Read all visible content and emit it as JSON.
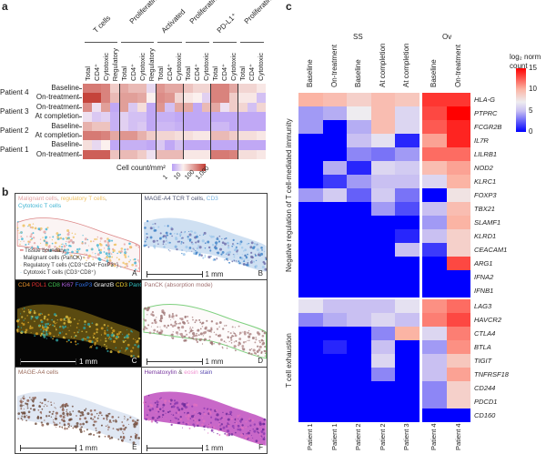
{
  "panel_a": {
    "letter": "a",
    "group_labels": [
      "T cells",
      "Proliferating",
      "Activated",
      "Proliferating activated",
      "PD-L1⁺",
      "Proliferating PD-L1⁺"
    ],
    "group_sizes": [
      4,
      4,
      3,
      3,
      3,
      3
    ],
    "column_labels": [
      "Total",
      "CD4⁺",
      "Cytotoxic",
      "Regulatory",
      "Total",
      "CD4⁺",
      "Cytotoxic",
      "Regulatory",
      "Total",
      "CD4⁺",
      "Cytotoxic",
      "Total",
      "CD4⁺",
      "Cytotoxic",
      "Total",
      "CD4⁺",
      "Cytotoxic",
      "Total",
      "CD4⁺",
      "Cytotoxic"
    ],
    "patients": [
      "Patient 4",
      "Patient 3",
      "Patient 2",
      "Patient 1"
    ],
    "row_labels": [
      "Baseline",
      "On-treatment",
      "On-treatment",
      "At completion",
      "Baseline",
      "At completion",
      "Baseline",
      "On-treatment"
    ],
    "values_log10_cell_count": [
      [
        2.3,
        2.3,
        2.2,
        1.4,
        1.8,
        1.6,
        1.6,
        0.7,
        2.0,
        1.8,
        1.8,
        1.5,
        1.3,
        1.3,
        2.2,
        2.2,
        1.8,
        1.3,
        1.3,
        1.1
      ],
      [
        2.9,
        2.9,
        2.2,
        1.6,
        1.9,
        1.9,
        1.8,
        1.0,
        2.1,
        2.0,
        1.3,
        1.1,
        1.0,
        0.6,
        2.2,
        2.2,
        1.4,
        1.1,
        1.1,
        0.4
      ],
      [
        2.1,
        0.8,
        1.9,
        0.1,
        1.9,
        0.5,
        1.2,
        0.1,
        2.0,
        0.4,
        1.8,
        1.8,
        0.1,
        1.6,
        1.8,
        0.8,
        1.4,
        1.3,
        0.4,
        1.3
      ],
      [
        0.8,
        0.5,
        0.6,
        0.2,
        0.6,
        0.4,
        0.4,
        0.1,
        0.2,
        0.2,
        0.1,
        0.1,
        0.1,
        0.1,
        0.1,
        0.1,
        0.1,
        0.1,
        0.1,
        0.1
      ],
      [
        1.7,
        1.5,
        1.5,
        0.2,
        0.6,
        0.4,
        0.5,
        0.1,
        0.3,
        0.3,
        0.2,
        0.1,
        0.1,
        0.1,
        0.3,
        0.3,
        0.1,
        0.1,
        0.1,
        0.1
      ],
      [
        2.3,
        2.3,
        2.2,
        1.8,
        2.0,
        2.0,
        1.7,
        1.4,
        1.3,
        1.3,
        1.2,
        1.2,
        1.1,
        1.1,
        1.6,
        1.6,
        1.4,
        1.2,
        1.2,
        1.1
      ],
      [
        1.2,
        0.7,
        1.0,
        0.1,
        0.2,
        0.2,
        0.2,
        0.1,
        0.5,
        0.1,
        0.4,
        0.1,
        0.1,
        0.1,
        0.1,
        0.1,
        0.1,
        0.1,
        0.1,
        0.1
      ],
      [
        2.6,
        2.6,
        2.6,
        1.5,
        1.6,
        1.6,
        1.4,
        0.8,
        1.6,
        1.6,
        1.6,
        1.1,
        1.1,
        1.1,
        2.3,
        2.3,
        2.2,
        1.2,
        1.2,
        1.1
      ]
    ],
    "colorbar": {
      "title": "Cell count/mm²",
      "ticks": [
        "1",
        "10",
        "100",
        "1,000"
      ],
      "low_color": "#b9a0f6",
      "mid_color": "#fbf0ee",
      "high_color": "#c23b32"
    }
  },
  "panel_b": {
    "letter": "b",
    "panels": [
      {
        "letter": "A",
        "title": [
          {
            "text": "Malignant cells",
            "color": "#e3a3a3"
          },
          {
            "text": ", ",
            "color": "#888"
          },
          {
            "text": "regulatory T cells",
            "color": "#efc264"
          },
          {
            "text": ",",
            "color": "#888"
          },
          {
            "text": "\nCytotoxic T cells",
            "color": "#3fb3d2"
          }
        ],
        "scale_label": ""
      },
      {
        "letter": "B",
        "title": [
          {
            "text": "MAGE-A4 TCR T cells, ",
            "color": "#4a5170"
          },
          {
            "text": "CD3",
            "color": "#79b4e0"
          }
        ],
        "scale_label": "1 mm"
      },
      {
        "letter": "C",
        "title": [
          {
            "text": "CD4 ",
            "color": "#e8902a"
          },
          {
            "text": "PDL1 ",
            "color": "#e03030"
          },
          {
            "text": "CD8 ",
            "color": "#3ec050"
          },
          {
            "text": "Ki67 ",
            "color": "#b060e0"
          },
          {
            "text": "FoxP3 ",
            "color": "#3070e8"
          },
          {
            "text": "GranzB ",
            "color": "#ffffff"
          },
          {
            "text": "CD3 ",
            "color": "#f0d030"
          },
          {
            "text": "PanCK",
            "color": "#30c0c0"
          }
        ],
        "scale_label": "1 mm"
      },
      {
        "letter": "D",
        "title": [
          {
            "text": "PanCK (absorption mode)",
            "color": "#a07070"
          }
        ],
        "scale_label": "1 mm"
      },
      {
        "letter": "E",
        "title": [
          {
            "text": "MAGE-A4 cells",
            "color": "#9a6a5a"
          }
        ],
        "scale_label": "1 mm"
      },
      {
        "letter": "F",
        "title": [
          {
            "text": "Hematoxylin",
            "color": "#7a3aa0"
          },
          {
            "text": " & ",
            "color": "#555"
          },
          {
            "text": "eosin",
            "color": "#f090d0"
          },
          {
            "text": " stain",
            "color": "#5a4ab0"
          }
        ],
        "scale_label": "1 mm"
      }
    ],
    "legend_A": [
      "Tissue boundary",
      "Malignant cells (PanCK)",
      "Regulatory T cells (CD3⁺CD4⁺FoxP3⁺)",
      "Cytotoxic T cells (CD3⁺CD8⁺)"
    ],
    "legend_A_colors": [
      "#d04040",
      "#e3a3a3",
      "#efc264",
      "#3fb3d2"
    ]
  },
  "panel_c": {
    "letter": "c",
    "groups": [
      "SS",
      "Ov"
    ],
    "column_labels": [
      "Baseline",
      "On-treatment",
      "Baseline",
      "At completion",
      "At completion",
      "Baseline",
      "On-treatment"
    ],
    "patient_labels": [
      "Patient 1",
      "Patient 1",
      "Patient 2",
      "Patient 2",
      "Patient 3",
      "Patient 4",
      "Patient 4"
    ],
    "row_groups": [
      {
        "label": "Negative regulation of T cell-mediated immunity",
        "genes": [
          "HLA-G",
          "PTPRC",
          "FCGR2B",
          "IL7R",
          "LILRB1",
          "NOD2",
          "KLRC1",
          "FOXP3",
          "TBX21",
          "SLAMF1",
          "KLRD1",
          "CEACAM1",
          "ARG1",
          "IFNA2",
          "IFNB1"
        ],
        "values": [
          [
            10,
            9.5,
            8.5,
            9.5,
            9,
            13.5,
            13.5
          ],
          [
            4,
            4.5,
            7,
            9.5,
            6,
            13,
            15
          ],
          [
            4,
            0,
            4.5,
            9.5,
            6,
            12.5,
            14
          ],
          [
            0,
            0,
            5,
            6.5,
            1,
            10.5,
            14
          ],
          [
            0,
            0,
            3.5,
            3,
            4,
            12,
            12
          ],
          [
            0,
            4.5,
            1,
            6,
            5.5,
            9.5,
            10.5
          ],
          [
            0,
            1.5,
            4,
            5,
            5,
            6,
            10
          ],
          [
            4,
            5.5,
            2.5,
            5.5,
            3,
            0,
            7.5
          ],
          [
            0,
            0,
            0,
            4,
            2,
            5,
            9.5
          ],
          [
            0,
            0,
            0,
            0,
            0,
            4,
            10
          ],
          [
            0,
            0,
            0,
            0,
            1,
            5,
            8.5
          ],
          [
            0,
            0,
            0,
            0,
            5,
            1.5,
            8.5
          ],
          [
            0,
            0,
            0,
            0,
            0,
            0,
            13
          ],
          [
            0,
            0,
            0,
            0,
            0,
            0,
            0
          ],
          [
            0,
            0,
            0,
            0,
            0,
            0,
            0
          ]
        ]
      },
      {
        "label": "T cell exhaustion",
        "genes": [
          "LAG3",
          "HAVCR2",
          "CTLA4",
          "BTLA",
          "TIGIT",
          "TNFRSF18",
          "CD244",
          "PDCD1",
          "CD160"
        ],
        "values": [
          [
            6.5,
            5,
            5,
            5,
            6.5,
            11,
            12
          ],
          [
            3.5,
            4.5,
            5,
            6,
            5,
            11.5,
            13
          ],
          [
            0,
            0,
            0,
            3.5,
            10,
            6,
            11.5
          ],
          [
            0,
            1,
            0,
            5,
            0,
            4,
            11
          ],
          [
            0,
            0,
            0,
            6,
            0,
            5,
            9
          ],
          [
            0,
            0,
            0,
            3.5,
            0,
            5,
            10.5
          ],
          [
            0,
            0,
            0,
            0,
            0,
            3.5,
            8.5
          ],
          [
            0,
            0,
            0,
            0,
            0,
            3.5,
            8.5
          ],
          [
            0,
            0,
            0,
            0,
            0,
            0,
            0
          ]
        ]
      }
    ],
    "colorbar": {
      "title": "log₂ norm count",
      "ticks": [
        "15",
        "10",
        "5",
        "0"
      ],
      "low_color": "#0000ff",
      "mid_color": "#eeecf0",
      "high_color": "#ff0000"
    }
  }
}
